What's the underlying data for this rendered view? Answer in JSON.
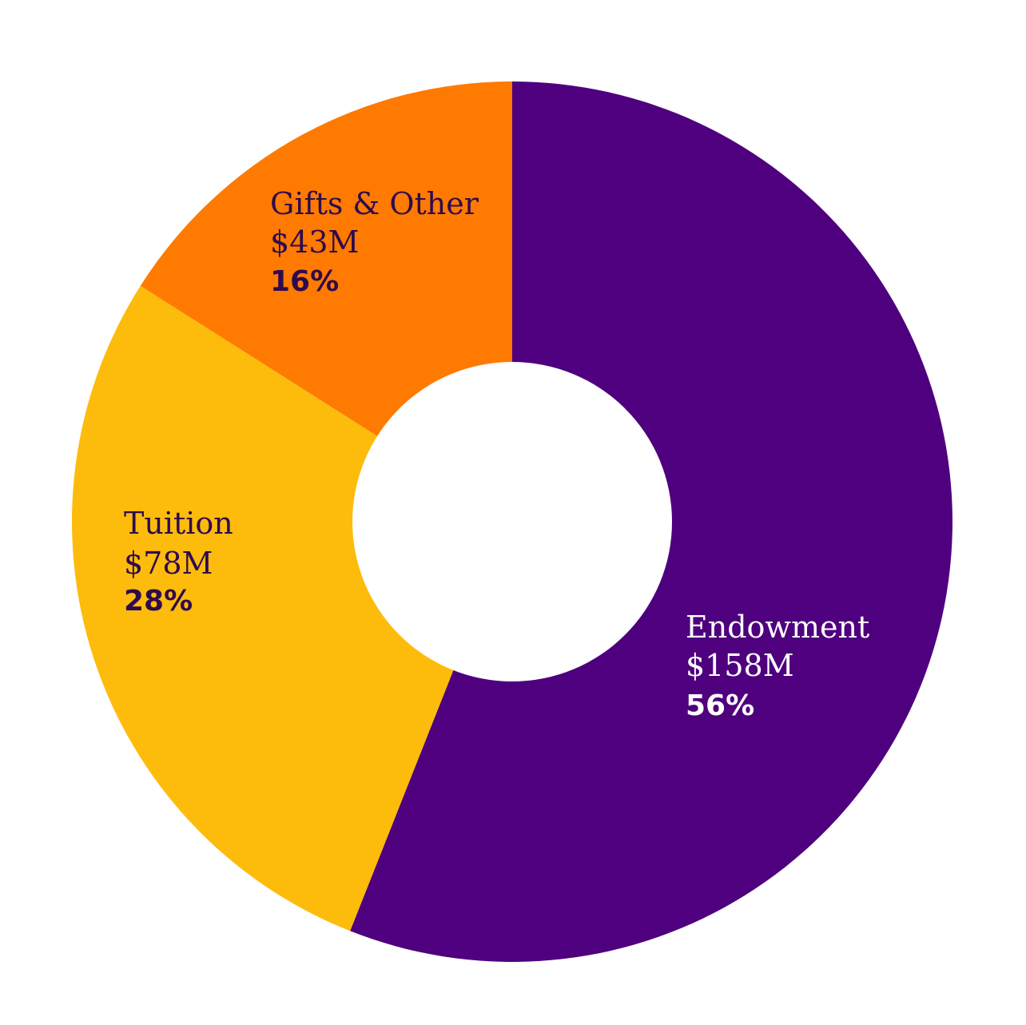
{
  "chart_data": {
    "type": "pie",
    "variant": "donut",
    "title": "",
    "start_angle_deg": 0,
    "direction": "clockwise",
    "slices": [
      {
        "name": "Endowment",
        "value_label": "$158M",
        "value": 158,
        "percent": 56,
        "percent_label": "56%",
        "color": "#4E007E",
        "text_color": "#FFFFFF"
      },
      {
        "name": "Tuition",
        "value_label": "$78M",
        "value": 78,
        "percent": 28,
        "percent_label": "28%",
        "color": "#FDBB0B",
        "text_color": "#2E0A4E"
      },
      {
        "name": "Gifts & Other",
        "value_label": "$43M",
        "value": 43,
        "percent": 16,
        "percent_label": "16%",
        "color": "#FF7A00",
        "text_color": "#2E0A4E"
      }
    ]
  }
}
